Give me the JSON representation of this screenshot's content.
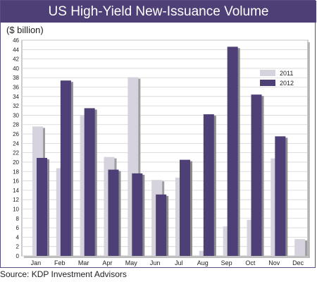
{
  "chart_data": {
    "type": "bar",
    "title": "US High-Yield New-Issuance Volume",
    "ylabel": "($ billion)",
    "xlabel": "",
    "source": "Source: KDP Investment Advisors",
    "categories": [
      "Jan",
      "Feb",
      "Mar",
      "Apr",
      "May",
      "Jun",
      "Jul",
      "Aug",
      "Sep",
      "Oct",
      "Nov",
      "Dec"
    ],
    "series": [
      {
        "name": "2011",
        "color": "#d6d3df",
        "values": [
          27.6,
          18.7,
          29.9,
          21.1,
          38.1,
          16.2,
          16.7,
          1.1,
          6.3,
          7.7,
          20.8,
          3.6
        ]
      },
      {
        "name": "2012",
        "color": "#4e3f76",
        "values": [
          20.9,
          37.4,
          31.5,
          18.4,
          17.6,
          13.1,
          20.5,
          30.2,
          44.6,
          34.4,
          25.5,
          0
        ]
      }
    ],
    "ylim": [
      0,
      46
    ],
    "yticks": [
      0,
      2,
      4,
      6,
      8,
      10,
      12,
      14,
      16,
      18,
      20,
      22,
      24,
      26,
      28,
      30,
      32,
      34,
      36,
      38,
      40,
      42,
      44,
      46
    ],
    "grid": true,
    "legend": "top-right"
  }
}
